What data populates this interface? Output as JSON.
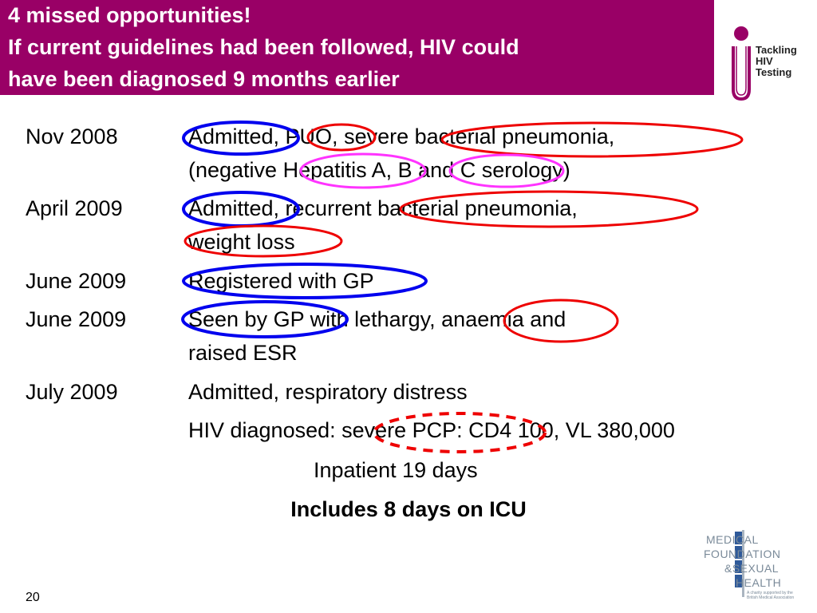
{
  "title": {
    "line1": "4 missed opportunities!",
    "line2": "If current guidelines had been followed, HIV could",
    "line3": "have been diagnosed 9 months earlier"
  },
  "logo_tackling": {
    "line1": "Tackling",
    "line2": "HIV",
    "line3": "Testing"
  },
  "timeline": [
    {
      "date": "Nov 2008",
      "lines": [
        "Admitted, PUO, severe bacterial pneumonia,",
        "(negative Hepatitis A, B and C serology)"
      ]
    },
    {
      "date": "April 2009",
      "lines": [
        "Admitted, recurrent bacterial pneumonia,",
        "weight loss"
      ]
    },
    {
      "date": "June 2009",
      "lines": [
        "Registered with GP"
      ]
    },
    {
      "date": "June 2009",
      "lines": [
        "Seen by GP with lethargy, anaemia and",
        "raised ESR"
      ]
    },
    {
      "date": "July 2009",
      "lines": [
        "Admitted, respiratory distress",
        "HIV diagnosed: severe PCP: CD4 100, VL 380,000"
      ]
    }
  ],
  "inpatient": "Inpatient 19 days",
  "icu": "Includes 8 days on ICU",
  "slide_number": "20",
  "medfash_logo": {
    "line1": "MEDICAL",
    "line2": "FOUNDATION",
    "line3": "&SEXUAL",
    "line4": "HEALTH",
    "small1": "A charity supported by the",
    "small2": "British Medical Association"
  },
  "colors": {
    "title_bg": "#990066",
    "blue_circle": "#0000ee",
    "red_circle": "#ee0000",
    "magenta_circle": "#ff33ff",
    "logo_purple": "#990066",
    "logo_blue": "#2f5a9a"
  }
}
